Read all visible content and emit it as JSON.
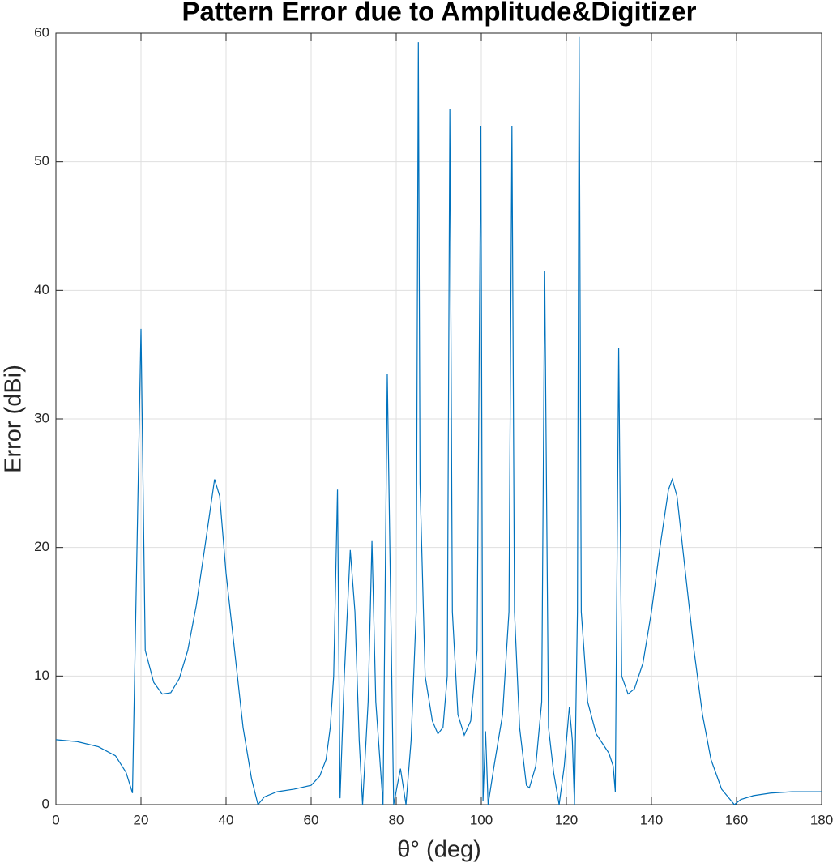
{
  "chart_data": {
    "type": "line",
    "title": "Pattern Error due to Amplitude&Digitizer",
    "xlabel": "θ° (deg)",
    "ylabel": "Error (dBi)",
    "x": [
      0,
      5,
      10,
      14,
      16.5,
      18,
      20,
      21,
      23,
      25,
      27,
      29,
      31,
      33,
      35,
      37.3,
      38.5,
      40,
      42,
      44,
      46,
      47.5,
      49,
      52,
      56,
      60,
      62,
      63.5,
      64.5,
      65.3,
      66.2,
      66.8,
      67.8,
      69.2,
      70.3,
      71.3,
      72.1,
      73.4,
      74.3,
      75.2,
      76.9,
      77.9,
      79.4,
      81,
      82.3,
      83.5,
      84.7,
      85.2,
      85.6,
      86.8,
      88.5,
      89.8,
      91,
      92,
      92.6,
      93.2,
      94.5,
      96,
      97.5,
      99,
      99.9,
      100.4,
      101,
      101.6,
      103,
      105,
      106.5,
      107.2,
      107.8,
      109,
      110.6,
      111.3,
      112.8,
      114.2,
      114.9,
      115.8,
      117,
      118.3,
      119.5,
      120.7,
      121.4,
      121.9,
      122.6,
      123,
      123.5,
      125,
      127,
      130,
      131,
      131.5,
      132.3,
      133,
      134.5,
      136,
      138,
      140,
      142,
      144,
      144.9,
      146,
      148,
      150,
      152,
      154,
      156.5,
      159.5,
      161,
      164,
      168,
      173,
      180
    ],
    "series": [
      {
        "name": "Error",
        "color": "#0072bd",
        "values": [
          5.05,
          4.9,
          4.5,
          3.8,
          2.5,
          0.9,
          37,
          12,
          9.5,
          8.6,
          8.7,
          9.8,
          12,
          15.5,
          20,
          25.3,
          24,
          18,
          12,
          6,
          2,
          0,
          0.6,
          1.0,
          1.2,
          1.5,
          2.2,
          3.5,
          6,
          10,
          24.5,
          0.5,
          10,
          19.8,
          15,
          5,
          0,
          8,
          20.5,
          8,
          0,
          33.5,
          0,
          2.8,
          0,
          5,
          15,
          59.3,
          25,
          10,
          6.5,
          5.5,
          6,
          10,
          54.1,
          15,
          7,
          5.4,
          6.5,
          12,
          52.8,
          0.3,
          5.7,
          0,
          3,
          7,
          15,
          52.8,
          15,
          6,
          1.5,
          1.3,
          3,
          8,
          41.5,
          6,
          2.5,
          0,
          3,
          7.6,
          5,
          0,
          15,
          59.7,
          15,
          8,
          5.5,
          4,
          3,
          1,
          35.5,
          10,
          8.6,
          9,
          11,
          15,
          20,
          24.5,
          25.3,
          24,
          18,
          12,
          7,
          3.5,
          1.2,
          0,
          0.4,
          0.7,
          0.9,
          1.0,
          1.0
        ]
      }
    ],
    "xlim": [
      0,
      180
    ],
    "xticks": [
      0,
      20,
      40,
      60,
      80,
      100,
      120,
      140,
      160,
      180
    ],
    "ylim": [
      0,
      60
    ],
    "yticks": [
      0,
      10,
      20,
      30,
      40,
      50,
      60
    ],
    "grid": true
  }
}
